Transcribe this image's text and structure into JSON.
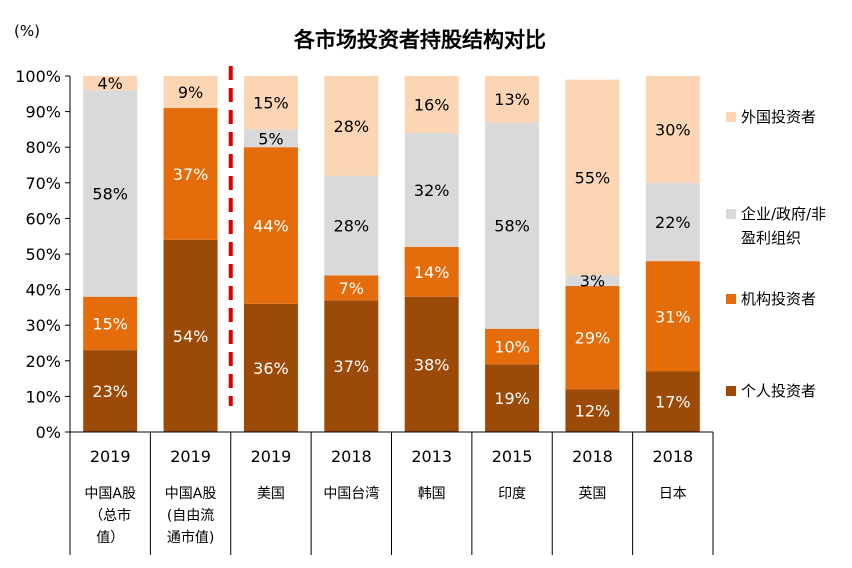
{
  "chart_data": {
    "type": "bar",
    "stacked": true,
    "title": "各市场投资者持股结构对比",
    "unit": "(%)",
    "ylim": [
      0,
      100
    ],
    "yticks": [
      "0%",
      "10%",
      "20%",
      "30%",
      "40%",
      "50%",
      "60%",
      "70%",
      "80%",
      "90%",
      "100%"
    ],
    "categories": [
      {
        "year": "2019",
        "lines": [
          "中国A股",
          "（总市",
          "值）"
        ]
      },
      {
        "year": "2019",
        "lines": [
          "中国A股",
          "(自由流",
          "通市值)"
        ]
      },
      {
        "year": "2019",
        "lines": [
          "美国"
        ]
      },
      {
        "year": "2018",
        "lines": [
          "中国台湾"
        ]
      },
      {
        "year": "2013",
        "lines": [
          "韩国"
        ]
      },
      {
        "year": "2015",
        "lines": [
          "印度"
        ]
      },
      {
        "year": "2018",
        "lines": [
          "英国"
        ]
      },
      {
        "year": "2018",
        "lines": [
          "日本"
        ]
      }
    ],
    "series": [
      {
        "name": "个人投资者",
        "color": "#9C4A08",
        "values": [
          23,
          54,
          36,
          37,
          38,
          19,
          12,
          17
        ],
        "labels": [
          "23%",
          "54%",
          "36%",
          "37%",
          "38%",
          "19%",
          "12%",
          "17%"
        ]
      },
      {
        "name": "机构投资者",
        "color": "#E46C0A",
        "values": [
          15,
          37,
          44,
          7,
          14,
          10,
          29,
          31
        ],
        "labels": [
          "15%",
          "37%",
          "44%",
          "7%",
          "14%",
          "10%",
          "29%",
          "31%"
        ]
      },
      {
        "name": "企业/政府/非盈利组织",
        "legend_lines": [
          "企业/政府/非",
          "盈利组织"
        ],
        "color": "#D9D9D9",
        "values": [
          58,
          0,
          5,
          28,
          32,
          58,
          3,
          22
        ],
        "labels": [
          "58%",
          "",
          "5%",
          "28%",
          "32%",
          "58%",
          "3%",
          "22%"
        ]
      },
      {
        "name": "外国投资者",
        "color": "#FCD5B5",
        "values": [
          4,
          9,
          15,
          28,
          16,
          13,
          55,
          30
        ],
        "labels": [
          "4%",
          "9%",
          "15%",
          "28%",
          "16%",
          "13%",
          "55%",
          "30%"
        ]
      }
    ],
    "legend_order": [
      3,
      2,
      1,
      0
    ],
    "legend_position": "right",
    "divider_after_index": 1,
    "divider_color": "#E00000",
    "grid": false
  }
}
